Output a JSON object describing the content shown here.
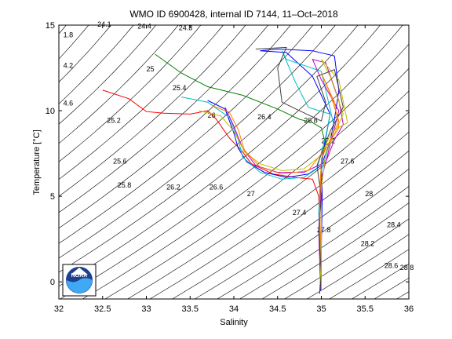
{
  "chart_data": {
    "type": "line",
    "title": "WMO ID 6900428, internal ID 7144, 11–Oct–2018",
    "xlabel": "Salinity",
    "ylabel": "Temperature [°C]",
    "xlim": [
      32,
      36
    ],
    "ylim": [
      -1,
      15
    ],
    "x_ticks": [
      "32",
      "32.5",
      "33",
      "33.5",
      "34",
      "34.5",
      "35",
      "35.5",
      "36"
    ],
    "y_ticks": [
      "0",
      "5",
      "10",
      "15"
    ],
    "grid": false,
    "density_contours": {
      "color": "#000000",
      "labels": [
        {
          "text": "24.1",
          "s": 32.44,
          "t": 14.9
        },
        {
          "text": "24.4",
          "s": 32.9,
          "t": 14.8
        },
        {
          "text": "24.8",
          "s": 33.37,
          "t": 14.7
        },
        {
          "text": "1.8",
          "s": 32.05,
          "t": 14.3
        },
        {
          "text": "4.2",
          "s": 32.05,
          "t": 12.5
        },
        {
          "text": "25",
          "s": 33.0,
          "t": 12.3
        },
        {
          "text": "25.4",
          "s": 33.3,
          "t": 11.2
        },
        {
          "text": "4.6",
          "s": 32.05,
          "t": 10.3
        },
        {
          "text": "26",
          "s": 33.7,
          "t": 9.6
        },
        {
          "text": "25.2",
          "s": 32.55,
          "t": 9.3
        },
        {
          "text": "26.4",
          "s": 34.27,
          "t": 9.5
        },
        {
          "text": "26.8",
          "s": 34.8,
          "t": 9.3
        },
        {
          "text": "27.2",
          "s": 35.0,
          "t": 8.1
        },
        {
          "text": "25.6",
          "s": 32.62,
          "t": 6.9
        },
        {
          "text": "27.6",
          "s": 35.22,
          "t": 6.9
        },
        {
          "text": "25.8",
          "s": 32.67,
          "t": 5.5
        },
        {
          "text": "26.2",
          "s": 33.23,
          "t": 5.4
        },
        {
          "text": "26.6",
          "s": 33.72,
          "t": 5.4
        },
        {
          "text": "27",
          "s": 34.15,
          "t": 5.0
        },
        {
          "text": "28",
          "s": 35.5,
          "t": 5.0
        },
        {
          "text": "27.4",
          "s": 34.67,
          "t": 3.9
        },
        {
          "text": "28.4",
          "s": 35.75,
          "t": 3.2
        },
        {
          "text": "27.8",
          "s": 34.95,
          "t": 2.9
        },
        {
          "text": "28.2",
          "s": 35.45,
          "t": 2.1
        },
        {
          "text": "28.6",
          "s": 35.72,
          "t": 0.8
        },
        {
          "text": "28.8",
          "s": 35.9,
          "t": 0.7
        }
      ]
    },
    "series": [
      {
        "color": "#ff0000",
        "points": [
          [
            32.5,
            11.2
          ],
          [
            32.8,
            10.7
          ],
          [
            33.0,
            9.95
          ],
          [
            33.2,
            9.85
          ],
          [
            33.5,
            9.8
          ],
          [
            33.7,
            10.0
          ],
          [
            33.8,
            9.5
          ],
          [
            33.95,
            8.4
          ],
          [
            34.1,
            7.6
          ],
          [
            34.2,
            6.9
          ],
          [
            34.45,
            6.3
          ],
          [
            34.7,
            6.1
          ],
          [
            34.9,
            6.0
          ],
          [
            34.97,
            5.0
          ],
          [
            34.99,
            2.0
          ],
          [
            35.0,
            -0.3
          ]
        ]
      },
      {
        "color": "#008000",
        "points": [
          [
            33.1,
            13.3
          ],
          [
            33.4,
            12.2
          ],
          [
            33.7,
            11.4
          ],
          [
            34.1,
            10.9
          ],
          [
            34.5,
            10.1
          ],
          [
            34.75,
            9.5
          ],
          [
            34.9,
            9.3
          ],
          [
            35.0,
            9.0
          ],
          [
            35.05,
            8.0
          ],
          [
            35.0,
            7.0
          ],
          [
            34.98,
            5.0
          ],
          [
            34.99,
            2.0
          ],
          [
            35.0,
            -0.3
          ]
        ]
      },
      {
        "color": "#0000ff",
        "points": [
          [
            33.7,
            10.6
          ],
          [
            33.9,
            10.1
          ],
          [
            34.0,
            8.7
          ],
          [
            34.05,
            7.8
          ],
          [
            34.15,
            7.0
          ],
          [
            34.35,
            6.4
          ],
          [
            34.6,
            6.1
          ],
          [
            34.85,
            6.3
          ],
          [
            35.0,
            6.8
          ],
          [
            35.1,
            8.2
          ],
          [
            35.15,
            9.5
          ],
          [
            35.2,
            11.2
          ],
          [
            35.15,
            13.2
          ],
          [
            34.9,
            13.5
          ],
          [
            34.5,
            13.6
          ],
          [
            34.3,
            13.5
          ],
          [
            34.6,
            13.4
          ],
          [
            34.9,
            12.0
          ],
          [
            35.1,
            9.8
          ],
          [
            35.0,
            7.0
          ],
          [
            35.01,
            5.0
          ],
          [
            35.0,
            2.0
          ],
          [
            34.99,
            -0.5
          ]
        ]
      },
      {
        "color": "#00bfbf",
        "points": [
          [
            33.4,
            10.8
          ],
          [
            33.7,
            10.5
          ],
          [
            33.95,
            9.6
          ],
          [
            34.05,
            8.3
          ],
          [
            34.1,
            7.3
          ],
          [
            34.3,
            6.4
          ],
          [
            34.55,
            6.0
          ],
          [
            34.8,
            6.1
          ],
          [
            34.95,
            6.6
          ],
          [
            35.05,
            8.5
          ],
          [
            35.1,
            9.8
          ],
          [
            34.85,
            10.2
          ],
          [
            34.7,
            11.7
          ],
          [
            34.55,
            13.5
          ],
          [
            34.6,
            13.0
          ],
          [
            35.0,
            12.3
          ],
          [
            35.15,
            9.0
          ],
          [
            35.0,
            6.5
          ],
          [
            34.97,
            4.0
          ],
          [
            35.0,
            1.0
          ],
          [
            34.98,
            -0.7
          ]
        ]
      },
      {
        "color": "#bf00bf",
        "points": [
          [
            33.9,
            10.2
          ],
          [
            34.0,
            9.1
          ],
          [
            34.1,
            7.8
          ],
          [
            34.25,
            6.8
          ],
          [
            34.5,
            6.4
          ],
          [
            34.8,
            6.4
          ],
          [
            35.05,
            7.0
          ],
          [
            35.15,
            8.3
          ],
          [
            35.25,
            9.2
          ],
          [
            35.2,
            10.6
          ],
          [
            35.05,
            12.8
          ],
          [
            34.9,
            13.0
          ],
          [
            35.0,
            11.8
          ],
          [
            35.2,
            10.0
          ],
          [
            35.1,
            8.0
          ],
          [
            35.0,
            6.0
          ],
          [
            34.97,
            3.0
          ],
          [
            34.99,
            -0.4
          ]
        ]
      },
      {
        "color": "#bfbf00",
        "points": [
          [
            33.6,
            10.0
          ],
          [
            33.85,
            9.7
          ],
          [
            34.0,
            8.8
          ],
          [
            34.12,
            7.6
          ],
          [
            34.3,
            6.9
          ],
          [
            34.55,
            6.5
          ],
          [
            34.8,
            6.6
          ],
          [
            35.0,
            7.4
          ],
          [
            35.12,
            8.8
          ],
          [
            35.3,
            9.3
          ],
          [
            35.2,
            11.8
          ],
          [
            35.0,
            13.0
          ],
          [
            35.1,
            12.0
          ],
          [
            35.25,
            9.8
          ],
          [
            35.05,
            7.5
          ],
          [
            35.0,
            5.5
          ],
          [
            35.0,
            1.5
          ],
          [
            34.98,
            -0.6
          ]
        ]
      },
      {
        "color": "#404040",
        "points": [
          [
            34.25,
            13.6
          ],
          [
            34.6,
            13.7
          ],
          [
            34.5,
            12.5
          ],
          [
            34.55,
            10.5
          ],
          [
            34.75,
            10.0
          ],
          [
            35.0,
            9.4
          ],
          [
            35.05,
            10.5
          ],
          [
            34.95,
            12.0
          ],
          [
            35.15,
            12.4
          ],
          [
            35.25,
            10.2
          ],
          [
            35.1,
            8.8
          ],
          [
            34.95,
            6.8
          ],
          [
            35.0,
            5.0
          ],
          [
            34.97,
            3.0
          ],
          [
            35.0,
            0.5
          ],
          [
            34.98,
            -0.7
          ]
        ]
      },
      {
        "color": "#ff8000",
        "points": [
          [
            33.75,
            10.3
          ],
          [
            33.95,
            9.9
          ],
          [
            34.05,
            8.9
          ],
          [
            34.12,
            7.7
          ],
          [
            34.3,
            6.7
          ],
          [
            34.55,
            6.3
          ],
          [
            34.85,
            6.5
          ],
          [
            35.05,
            7.8
          ],
          [
            35.2,
            9.0
          ],
          [
            35.15,
            10.5
          ],
          [
            35.0,
            12.2
          ],
          [
            35.1,
            11.0
          ],
          [
            35.2,
            9.4
          ],
          [
            35.0,
            7.2
          ],
          [
            34.98,
            4.5
          ],
          [
            35.0,
            1.0
          ],
          [
            35.0,
            -0.5
          ]
        ]
      }
    ]
  },
  "logo": {
    "name": "NOAA",
    "text": "NOAA"
  }
}
